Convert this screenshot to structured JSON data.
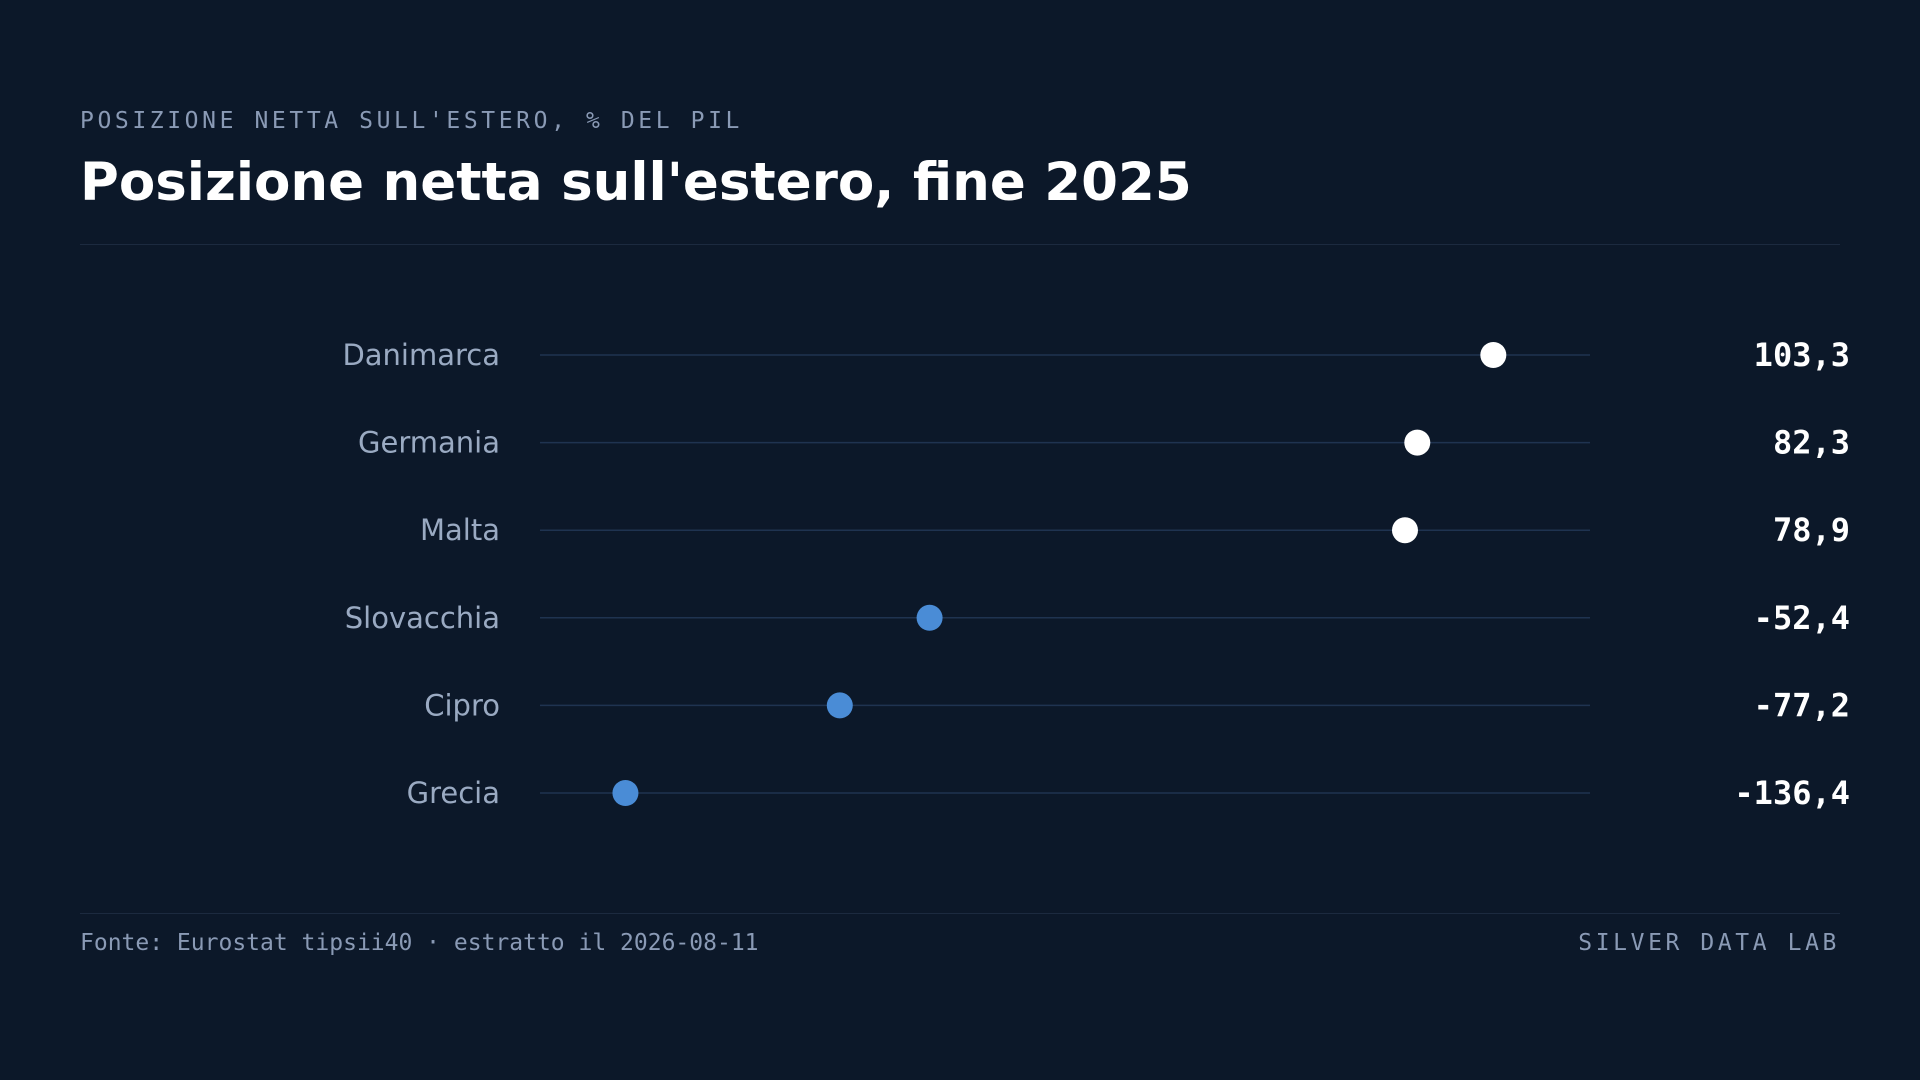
{
  "header": {
    "kicker": "POSIZIONE NETTA SULL'ESTERO, % DEL PIL",
    "title": "Posizione netta sull'estero, fine 2025"
  },
  "footer": {
    "source": "Fonte: Eurostat tipsii40 · estratto il 2026-08-11",
    "brand": "SILVER DATA LAB"
  },
  "colors": {
    "background": "#0c1829",
    "positive": "#ffffff",
    "negative": "#4a8cd6",
    "track": "#1f3350",
    "label": "#9aaac2",
    "value": "#ffffff"
  },
  "chart_data": {
    "type": "scatter",
    "orientation": "horizontal-dot-plot",
    "categories": [
      "Danimarca",
      "Germania",
      "Malta",
      "Slovacchia",
      "Cipro",
      "Grecia"
    ],
    "values": [
      103.3,
      82.3,
      78.9,
      -52.4,
      -77.2,
      -136.4
    ],
    "value_labels": [
      "103,3",
      "82,3",
      "78,9",
      "-52,4",
      "-77,2",
      "-136,4"
    ],
    "xlim": [
      -160,
      130
    ],
    "grid": false
  }
}
